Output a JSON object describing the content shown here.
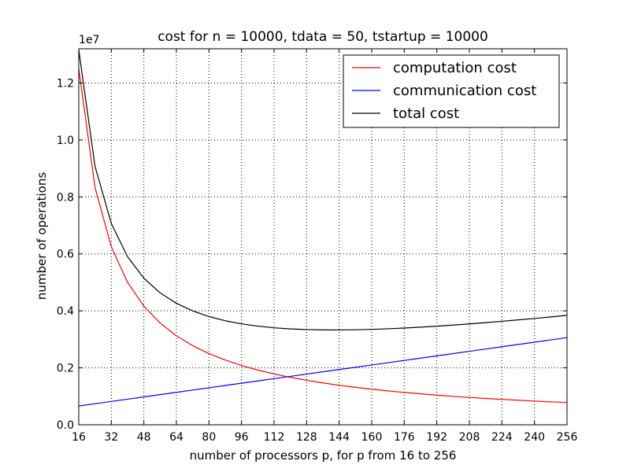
{
  "chart_data": {
    "type": "line",
    "title": "cost for n = 10000, tdata = 50, tstartup = 10000",
    "xlabel": "number of processors p, for p from 16 to 256",
    "ylabel": "number of operations",
    "y_offset_label": "1e7",
    "xlim": [
      16,
      256
    ],
    "ylim": [
      0,
      13200000
    ],
    "x_ticks": [
      16,
      32,
      48,
      64,
      80,
      96,
      112,
      128,
      144,
      160,
      176,
      192,
      208,
      224,
      240,
      256
    ],
    "x_tick_labels": [
      "16",
      "32",
      "48",
      "64",
      "80",
      "96",
      "112",
      "128",
      "144",
      "160",
      "176",
      "192",
      "208",
      "224",
      "240",
      "256"
    ],
    "y_ticks": [
      0,
      2000000,
      4000000,
      6000000,
      8000000,
      10000000,
      12000000
    ],
    "y_tick_labels": [
      "0.0",
      "0.2",
      "0.4",
      "0.6",
      "0.8",
      "1.0",
      "1.2"
    ],
    "grid": true,
    "legend_position": "top-right",
    "x": [
      16,
      24,
      32,
      40,
      48,
      56,
      64,
      72,
      80,
      88,
      96,
      104,
      112,
      120,
      128,
      136,
      144,
      152,
      160,
      168,
      176,
      184,
      192,
      200,
      208,
      216,
      224,
      232,
      240,
      248,
      256
    ],
    "series": [
      {
        "name": "computation cost",
        "color": "#ff0000",
        "values": [
          12500000,
          8333333,
          6250000,
          5000000,
          4166667,
          3571429,
          3125000,
          2777778,
          2500000,
          2272727,
          2083333,
          1923077,
          1785714,
          1666667,
          1562500,
          1470588,
          1388889,
          1315789,
          1250000,
          1190476,
          1136364,
          1086957,
          1041667,
          1000000,
          961538,
          925926,
          892857,
          862069,
          833333,
          806452,
          781250
        ]
      },
      {
        "name": "communication cost",
        "color": "#0000ff",
        "values": [
          660000,
          740000,
          820000,
          900000,
          980000,
          1060000,
          1140000,
          1220000,
          1300000,
          1380000,
          1460000,
          1540000,
          1620000,
          1700000,
          1780000,
          1860000,
          1940000,
          2020000,
          2100000,
          2180000,
          2260000,
          2340000,
          2420000,
          2500000,
          2580000,
          2660000,
          2740000,
          2820000,
          2900000,
          2980000,
          3060000
        ]
      },
      {
        "name": "total cost",
        "color": "#000000",
        "values": [
          13160000,
          9073333,
          7070000,
          5900000,
          5146667,
          4631429,
          4265000,
          3997778,
          3800000,
          3652727,
          3543333,
          3463077,
          3405714,
          3366667,
          3342500,
          3330588,
          3328889,
          3335789,
          3350000,
          3370476,
          3396364,
          3426957,
          3461667,
          3500000,
          3541538,
          3585926,
          3632857,
          3682069,
          3733333,
          3786452,
          3841250
        ]
      }
    ]
  }
}
